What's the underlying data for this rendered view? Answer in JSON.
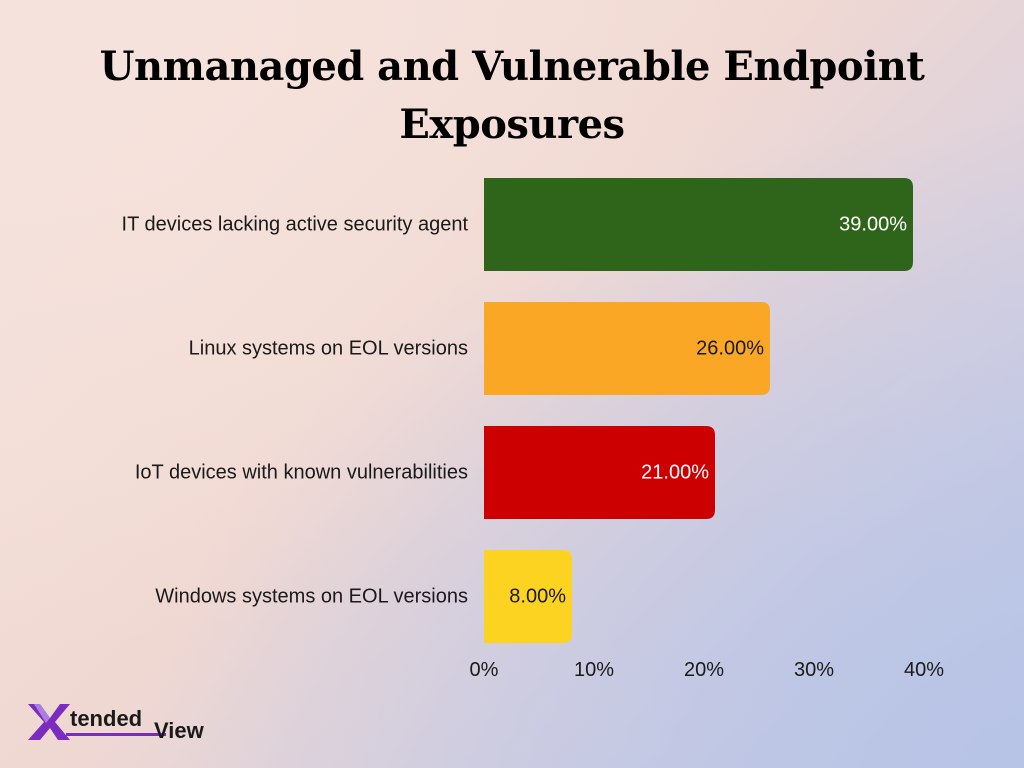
{
  "page": {
    "title_line1": "Unmanaged and Vulnerable Endpoint",
    "title_line2": "Exposures"
  },
  "chart_data": {
    "type": "bar",
    "orientation": "horizontal",
    "title": "Unmanaged and Vulnerable Endpoint Exposures",
    "categories": [
      "IT devices lacking active security agent",
      "Linux systems on EOL versions",
      "IoT devices with known vulnerabilities",
      "Windows systems on EOL versions"
    ],
    "values": [
      39,
      26,
      21,
      8
    ],
    "value_labels": [
      "39.00%",
      "26.00%",
      "21.00%",
      "8.00%"
    ],
    "bar_colors": [
      "#2f651a",
      "#fba726",
      "#cc0000",
      "#fdd322"
    ],
    "value_label_colors": [
      "#ffffff",
      "#1a1a1a",
      "#ffffff",
      "#1a1a1a"
    ],
    "xlim": [
      0,
      40
    ],
    "xticks": [
      0,
      10,
      20,
      30,
      40
    ],
    "xtick_labels": [
      "0%",
      "10%",
      "20%",
      "30%",
      "40%"
    ],
    "grid": false,
    "legend": "none"
  },
  "logo": {
    "text_part1": "tended",
    "text_part2": "View",
    "mark": "X",
    "colors": [
      "#7b2cbf",
      "#b48ee6",
      "#1a1a1a"
    ]
  }
}
